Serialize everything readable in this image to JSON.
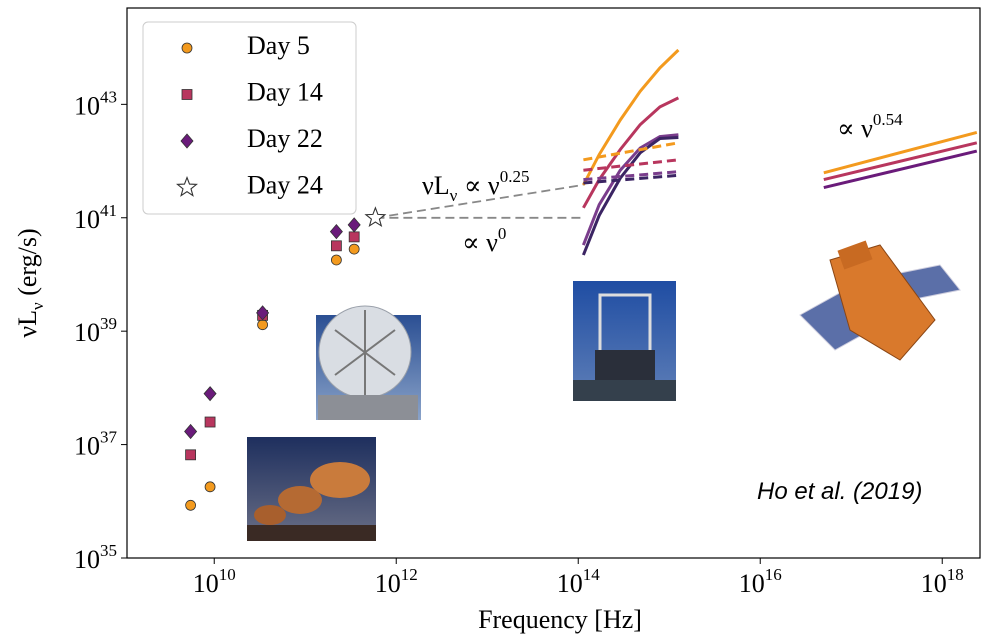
{
  "chart_data": {
    "type": "scatter",
    "xlabel": "Frequency [Hz]",
    "ylabel": [
      {
        "text": "νL"
      },
      {
        "text": "ν",
        "shift": "sub"
      },
      {
        "text": " (erg/s)"
      }
    ],
    "xscale": "log",
    "yscale": "log",
    "xlim": [
      1100000000.0,
      2.6e+18
    ],
    "ylim": [
      1e+35,
      5e+44
    ],
    "xticks": [
      {
        "value": 10000000000.0,
        "label": "10",
        "exponent": "10"
      },
      {
        "value": 1000000000000.0,
        "label": "10",
        "exponent": "12"
      },
      {
        "value": 100000000000000.0,
        "label": "10",
        "exponent": "14"
      },
      {
        "value": 1e+16,
        "label": "10",
        "exponent": "16"
      },
      {
        "value": 1e+18,
        "label": "10",
        "exponent": "18"
      }
    ],
    "yticks": [
      {
        "value": 1e+35,
        "label": "10",
        "exponent": "35"
      },
      {
        "value": 1e+37,
        "label": "10",
        "exponent": "37"
      },
      {
        "value": 1e+39,
        "label": "10",
        "exponent": "39"
      },
      {
        "value": 1e+41,
        "label": "10",
        "exponent": "41"
      },
      {
        "value": 1e+43,
        "label": "10",
        "exponent": "43"
      }
    ],
    "legend": "upper left",
    "series": [
      {
        "name": "Day 5",
        "marker": "circle",
        "color": "#f39a1e",
        "x": [
          5500000000.0,
          9000000000.0,
          34000000000.0,
          220000000000.0,
          345000000000.0
        ],
        "values": [
          8.5e+35,
          1.8e+36,
          1.3e+39,
          1.8e+40,
          2.8e+40
        ]
      },
      {
        "name": "Day 14",
        "marker": "square",
        "color": "#b8365e",
        "x": [
          5500000000.0,
          9000000000.0,
          34000000000.0,
          220000000000.0,
          345000000000.0
        ],
        "values": [
          6.6e+36,
          2.5e+37,
          1.9e+39,
          3.2e+40,
          4.6e+40
        ]
      },
      {
        "name": "Day 22",
        "marker": "diamond",
        "color": "#6a1b7a",
        "x": [
          5500000000.0,
          9000000000.0,
          34000000000.0,
          220000000000.0,
          345000000000.0
        ],
        "values": [
          1.7e+37,
          7.9e+37,
          2.1e+39,
          5.7e+40,
          7.5e+40
        ]
      },
      {
        "name": "Day 24",
        "marker": "star",
        "color": "#ffffff",
        "x": [
          590000000000.0
        ],
        "values": [
          1e+41
        ]
      },
      {
        "linestyle": "dashed",
        "color": "#888888",
        "x": [
          590000000000.0,
          114000000000000.0
        ],
        "values": [
          1e+41,
          3.8e+41
        ]
      },
      {
        "linestyle": "dashed",
        "color": "#888888",
        "x": [
          590000000000.0,
          114000000000000.0
        ],
        "values": [
          1e+41,
          1e+41
        ]
      },
      {
        "linestyle": "solid",
        "color": "#f39a1e",
        "x": [
          114000000000000.0,
          170000000000000.0,
          290000000000000.0,
          480000000000000.0,
          790000000000000.0,
          1260000000000000.0
        ],
        "values": [
          3.8e+41,
          1.3e+42,
          5.3e+42,
          1.7e+43,
          4.4e+43,
          9.1e+43
        ]
      },
      {
        "linestyle": "solid",
        "color": "#b8365e",
        "x": [
          114000000000000.0,
          170000000000000.0,
          290000000000000.0,
          480000000000000.0,
          790000000000000.0,
          1260000000000000.0
        ],
        "values": [
          1.5e+41,
          4.7e+41,
          1.6e+42,
          4.4e+42,
          9e+42,
          1.3e+43
        ]
      },
      {
        "linestyle": "solid",
        "color": "#7a3d8c",
        "x": [
          114000000000000.0,
          170000000000000.0,
          290000000000000.0,
          480000000000000.0,
          790000000000000.0,
          1260000000000000.0
        ],
        "values": [
          3.3e+40,
          1.7e+41,
          6.9e+41,
          1.7e+42,
          2.7e+42,
          2.9e+42
        ]
      },
      {
        "linestyle": "solid",
        "color": "#3b2463",
        "x": [
          114000000000000.0,
          170000000000000.0,
          290000000000000.0,
          480000000000000.0,
          790000000000000.0,
          1260000000000000.0
        ],
        "values": [
          2.2e+40,
          1.1e+41,
          5e+41,
          1.4e+42,
          2.5e+42,
          2.6e+42
        ]
      },
      {
        "linestyle": "dashed",
        "color": "#f39a1e",
        "x": [
          114000000000000.0,
          1260000000000000.0
        ],
        "values": [
          1.05e+42,
          2.1e+42
        ]
      },
      {
        "linestyle": "dashed",
        "color": "#b8365e",
        "x": [
          114000000000000.0,
          1260000000000000.0
        ],
        "values": [
          6.9e+41,
          1.05e+42
        ]
      },
      {
        "linestyle": "dashed",
        "color": "#7a3d8c",
        "x": [
          114000000000000.0,
          1260000000000000.0
        ],
        "values": [
          4.7e+41,
          6.5e+41
        ]
      },
      {
        "linestyle": "dashed",
        "color": "#3b2463",
        "x": [
          114000000000000.0,
          1260000000000000.0
        ],
        "values": [
          4.1e+41,
          5.6e+41
        ]
      },
      {
        "linestyle": "solid",
        "color": "#f39a1e",
        "x": [
          5e+16,
          2.4e+18
        ],
        "values": [
          6.2e+41,
          3.2e+42
        ]
      },
      {
        "linestyle": "solid",
        "color": "#b8365e",
        "x": [
          5e+16,
          2.4e+18
        ],
        "values": [
          4.7e+41,
          2.1e+42
        ]
      },
      {
        "linestyle": "solid",
        "color": "#6a1b7a",
        "x": [
          5e+16,
          2.4e+18
        ],
        "values": [
          3.4e+41,
          1.5e+42
        ]
      }
    ],
    "annotations": [
      {
        "parts": [
          {
            "text": "∝ ν"
          },
          {
            "text": "0.54",
            "shift": "sup"
          }
        ]
      },
      {
        "parts": [
          {
            "text": "νL"
          },
          {
            "text": "ν",
            "shift": "sub"
          },
          {
            "text": " ∝ ν"
          },
          {
            "text": "0.25",
            "shift": "sup"
          }
        ]
      },
      {
        "parts": [
          {
            "text": "∝ ν"
          },
          {
            "text": "0",
            "shift": "sup"
          }
        ]
      },
      {
        "parts": [
          {
            "text": "Ho et al. (2019)"
          }
        ],
        "style": "italic-sans"
      }
    ]
  }
}
